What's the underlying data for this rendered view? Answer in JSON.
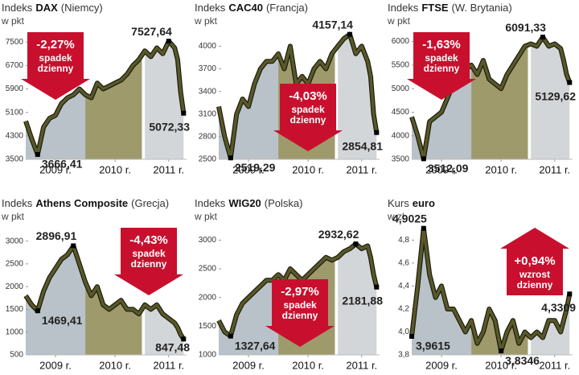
{
  "chart_data": [
    {
      "type": "line",
      "title": {
        "prefix": "Indeks",
        "name": "DAX",
        "suffix": "(Niemcy)"
      },
      "unit": "w pkt",
      "x": [
        2009.0,
        2009.1,
        2009.2,
        2009.3,
        2009.4,
        2009.5,
        2009.6,
        2009.7,
        2009.8,
        2009.9,
        2010.0,
        2010.1,
        2010.2,
        2010.3,
        2010.4,
        2010.5,
        2010.6,
        2010.7,
        2010.8,
        2010.9,
        2011.0,
        2011.1,
        2011.2,
        2011.3,
        2011.4,
        2011.5,
        2011.55,
        2011.6,
        2011.65
      ],
      "xlim": [
        2009,
        2011.7
      ],
      "xticks": [
        {
          "value": 2009.5,
          "label": "2009 r."
        },
        {
          "value": 2010.5,
          "label": "2010 r."
        },
        {
          "value": 2011.4,
          "label": "2011 r."
        }
      ],
      "ylim": [
        3500,
        8000
      ],
      "yticks": [
        3500,
        4300,
        5100,
        5900,
        6700,
        7500
      ],
      "band_colors": [
        "#b8c2c8",
        "#9e9a6c",
        "#d3d6d8"
      ],
      "series": [
        {
          "color": "#58582a",
          "values": [
            4800,
            4200,
            3666.41,
            4600,
            4900,
            5000,
            5400,
            5600,
            5700,
            5900,
            5700,
            5600,
            6100,
            5900,
            6000,
            6100,
            6200,
            6400,
            6700,
            6900,
            7200,
            7000,
            7300,
            7100,
            7527.64,
            7300,
            6900,
            5800,
            5072.33
          ],
          "value_labels": [
            null,
            null,
            "3666,41",
            null,
            null,
            null,
            null,
            null,
            null,
            null,
            null,
            null,
            null,
            null,
            null,
            null,
            null,
            null,
            null,
            null,
            null,
            null,
            null,
            null,
            "7527,64",
            null,
            null,
            null,
            "5072,33"
          ]
        }
      ],
      "badge": {
        "change": "-2,27%",
        "lines": [
          "spadek",
          "dzienny"
        ],
        "direction": "down",
        "color": "#c8102e",
        "position": "top-left"
      }
    },
    {
      "type": "line",
      "title": {
        "prefix": "Indeks",
        "name": "CAC40",
        "suffix": "(Francja)"
      },
      "unit": "w pkt",
      "x": [
        2009.0,
        2009.1,
        2009.2,
        2009.3,
        2009.4,
        2009.5,
        2009.6,
        2009.7,
        2009.8,
        2009.9,
        2010.0,
        2010.1,
        2010.2,
        2010.3,
        2010.4,
        2010.5,
        2010.6,
        2010.7,
        2010.8,
        2010.9,
        2011.0,
        2011.1,
        2011.2,
        2011.3,
        2011.4,
        2011.5,
        2011.55,
        2011.6,
        2011.65
      ],
      "xlim": [
        2009,
        2011.7
      ],
      "xticks": [
        {
          "value": 2009.5,
          "label": "2009 r."
        },
        {
          "value": 2010.5,
          "label": "2010 r."
        },
        {
          "value": 2011.4,
          "label": "2011 r."
        }
      ],
      "ylim": [
        2500,
        4250
      ],
      "yticks": [
        2500,
        2800,
        3100,
        3400,
        3700,
        4000
      ],
      "band_colors": [
        "#b8c2c8",
        "#9e9a6c",
        "#d3d6d8"
      ],
      "series": [
        {
          "color": "#58582a",
          "values": [
            3200,
            2800,
            2519.29,
            3100,
            3300,
            3200,
            3500,
            3700,
            3800,
            3800,
            3900,
            3700,
            4000,
            3500,
            3600,
            3500,
            3700,
            3800,
            3700,
            3900,
            4000,
            4100,
            4157.14,
            3900,
            4000,
            3800,
            3600,
            3100,
            2854.81
          ],
          "value_labels": [
            null,
            null,
            "2519,29",
            null,
            null,
            null,
            null,
            null,
            null,
            null,
            null,
            null,
            null,
            null,
            null,
            null,
            null,
            null,
            null,
            null,
            null,
            null,
            "4157,14",
            null,
            null,
            null,
            null,
            null,
            "2854,81"
          ]
        }
      ],
      "badge": {
        "change": "-4,03%",
        "lines": [
          "spadek",
          "dzienny"
        ],
        "direction": "down",
        "color": "#c8102e",
        "position": "bottom-center"
      }
    },
    {
      "type": "line",
      "title": {
        "prefix": "Indeks",
        "name": "FTSE",
        "suffix": "(W. Brytania)"
      },
      "unit": "w pkt",
      "x": [
        2009.0,
        2009.1,
        2009.2,
        2009.3,
        2009.4,
        2009.5,
        2009.6,
        2009.7,
        2009.8,
        2009.9,
        2010.0,
        2010.1,
        2010.2,
        2010.3,
        2010.4,
        2010.5,
        2010.6,
        2010.7,
        2010.8,
        2010.9,
        2011.0,
        2011.1,
        2011.2,
        2011.3,
        2011.4,
        2011.5,
        2011.55,
        2011.6,
        2011.65
      ],
      "xlim": [
        2009,
        2011.7
      ],
      "xticks": [
        {
          "value": 2009.5,
          "label": "2009 r."
        },
        {
          "value": 2010.5,
          "label": "2010 r."
        },
        {
          "value": 2011.4,
          "label": "2011 r."
        }
      ],
      "ylim": [
        3500,
        6300
      ],
      "yticks": [
        3500,
        4000,
        4500,
        5000,
        5500,
        6000
      ],
      "band_colors": [
        "#b8c2c8",
        "#9e9a6c",
        "#d3d6d8"
      ],
      "series": [
        {
          "color": "#58582a",
          "values": [
            4400,
            4000,
            3512.09,
            4300,
            4400,
            4500,
            4800,
            5100,
            5200,
            5400,
            5500,
            5300,
            5600,
            5200,
            5100,
            5000,
            5300,
            5500,
            5700,
            5900,
            5950,
            5900,
            6091.33,
            5900,
            5950,
            5850,
            5600,
            5300,
            5129.62
          ],
          "value_labels": [
            null,
            null,
            "3512,09",
            null,
            null,
            null,
            null,
            null,
            null,
            null,
            null,
            null,
            null,
            null,
            null,
            null,
            null,
            null,
            null,
            null,
            null,
            null,
            "6091,33",
            null,
            null,
            null,
            null,
            null,
            "5129,62"
          ]
        }
      ],
      "badge": {
        "change": "-1,63%",
        "lines": [
          "spadek",
          "dzienny"
        ],
        "direction": "down",
        "color": "#c8102e",
        "position": "top-left"
      }
    },
    {
      "type": "line",
      "title": {
        "prefix": "Indeks",
        "name": "Athens Composite",
        "suffix": "(Grecja)"
      },
      "unit": "w pkt",
      "x": [
        2009.0,
        2009.1,
        2009.2,
        2009.3,
        2009.4,
        2009.5,
        2009.6,
        2009.7,
        2009.8,
        2009.9,
        2010.0,
        2010.1,
        2010.2,
        2010.3,
        2010.4,
        2010.5,
        2010.6,
        2010.7,
        2010.8,
        2010.9,
        2011.0,
        2011.1,
        2011.2,
        2011.3,
        2011.4,
        2011.5,
        2011.55,
        2011.6,
        2011.65
      ],
      "xlim": [
        2009,
        2011.7
      ],
      "xticks": [
        {
          "value": 2009.5,
          "label": "2009 r."
        },
        {
          "value": 2010.5,
          "label": "2010 r."
        },
        {
          "value": 2011.4,
          "label": "2011 r."
        }
      ],
      "ylim": [
        500,
        3400
      ],
      "yticks": [
        500,
        1000,
        1500,
        2000,
        2500,
        3000
      ],
      "band_colors": [
        "#b8c2c8",
        "#9e9a6c",
        "#d3d6d8"
      ],
      "series": [
        {
          "color": "#58582a",
          "values": [
            1800,
            1600,
            1469.41,
            1900,
            2200,
            2400,
            2600,
            2700,
            2896.91,
            2500,
            2100,
            1800,
            2000,
            1600,
            1500,
            1600,
            1700,
            1500,
            1500,
            1400,
            1600,
            1500,
            1600,
            1400,
            1300,
            1200,
            1100,
            950,
            847.48
          ],
          "value_labels": [
            null,
            null,
            "1469,41",
            null,
            null,
            null,
            null,
            null,
            "2896,91",
            null,
            null,
            null,
            null,
            null,
            null,
            null,
            null,
            null,
            null,
            null,
            null,
            null,
            null,
            null,
            null,
            null,
            null,
            null,
            "847,48"
          ]
        }
      ],
      "badge": {
        "change": "-4,43%",
        "lines": [
          "spadek",
          "dzienny"
        ],
        "direction": "down",
        "color": "#c8102e",
        "position": "top-right"
      }
    },
    {
      "type": "line",
      "title": {
        "prefix": "Indeks",
        "name": "WIG20",
        "suffix": "(Polska)"
      },
      "unit": "w pkt",
      "x": [
        2009.0,
        2009.1,
        2009.2,
        2009.3,
        2009.4,
        2009.5,
        2009.6,
        2009.7,
        2009.8,
        2009.9,
        2010.0,
        2010.1,
        2010.2,
        2010.3,
        2010.4,
        2010.5,
        2010.6,
        2010.7,
        2010.8,
        2010.9,
        2011.0,
        2011.1,
        2011.2,
        2011.3,
        2011.4,
        2011.5,
        2011.55,
        2011.6,
        2011.65
      ],
      "xlim": [
        2009,
        2011.7
      ],
      "xticks": [
        {
          "value": 2009.5,
          "label": "2009 r."
        },
        {
          "value": 2010.5,
          "label": "2010 r."
        },
        {
          "value": 2011.4,
          "label": "2011 r."
        }
      ],
      "ylim": [
        1000,
        3300
      ],
      "yticks": [
        1000,
        1500,
        2000,
        2500,
        3000
      ],
      "band_colors": [
        "#b8c2c8",
        "#9e9a6c",
        "#d3d6d8"
      ],
      "series": [
        {
          "color": "#58582a",
          "values": [
            1600,
            1400,
            1327.64,
            1700,
            1900,
            2000,
            2100,
            2200,
            2300,
            2300,
            2400,
            2300,
            2500,
            2400,
            2300,
            2400,
            2500,
            2600,
            2700,
            2650,
            2700,
            2800,
            2850,
            2932.62,
            2850,
            2900,
            2700,
            2400,
            2181.88
          ],
          "value_labels": [
            null,
            null,
            "1327,64",
            null,
            null,
            null,
            null,
            null,
            null,
            null,
            null,
            null,
            null,
            null,
            null,
            null,
            null,
            null,
            null,
            null,
            null,
            null,
            null,
            "2932,62",
            null,
            null,
            null,
            null,
            "2181,88"
          ]
        }
      ],
      "badge": {
        "change": "-2,97%",
        "lines": [
          "spadek",
          "dzienny"
        ],
        "direction": "down",
        "color": "#c8102e",
        "position": "bottom-center"
      }
    },
    {
      "type": "line",
      "title": {
        "prefix": "Kurs",
        "name": "euro",
        "suffix": null
      },
      "unit": "w zł",
      "x": [
        2009.0,
        2009.1,
        2009.2,
        2009.3,
        2009.4,
        2009.5,
        2009.6,
        2009.7,
        2009.8,
        2009.9,
        2010.0,
        2010.1,
        2010.2,
        2010.3,
        2010.4,
        2010.5,
        2010.6,
        2010.7,
        2010.8,
        2010.9,
        2011.0,
        2011.1,
        2011.2,
        2011.3,
        2011.4,
        2011.5,
        2011.55,
        2011.6,
        2011.65
      ],
      "xlim": [
        2009,
        2011.7
      ],
      "xticks": [
        {
          "value": 2009.5,
          "label": "2009 r."
        },
        {
          "value": 2010.5,
          "label": "2010 r."
        },
        {
          "value": 2011.4,
          "label": "2011 r."
        }
      ],
      "ylim": [
        3.8,
        4.95
      ],
      "yticks": [
        {
          "value": 3.8,
          "label": "3,8"
        },
        {
          "value": 4.0,
          "label": "4,0"
        },
        {
          "value": 4.2,
          "label": "4,2"
        },
        {
          "value": 4.4,
          "label": "4,4"
        },
        {
          "value": 4.6,
          "label": "4,6"
        },
        {
          "value": 4.8,
          "label": "4,8"
        }
      ],
      "band_colors": [
        "#b8c2c8",
        "#9e9a6c",
        "#d3d6d8"
      ],
      "series": [
        {
          "color": "#58582a",
          "values": [
            3.9615,
            4.4,
            4.9025,
            4.5,
            4.3,
            4.4,
            4.2,
            4.2,
            4.1,
            4.0,
            4.1,
            3.9,
            4.0,
            4.2,
            4.1,
            3.8346,
            4.0,
            4.1,
            3.9,
            4.0,
            3.95,
            4.0,
            3.95,
            4.1,
            4.1,
            4.0,
            4.1,
            4.2,
            4.3309
          ],
          "value_labels": [
            "3,9615",
            null,
            "4,9025",
            null,
            null,
            null,
            null,
            null,
            null,
            null,
            null,
            null,
            null,
            null,
            null,
            "3,8346",
            null,
            null,
            null,
            null,
            null,
            null,
            null,
            null,
            null,
            null,
            null,
            null,
            "4,3309"
          ]
        }
      ],
      "badge": {
        "change": "+0,94%",
        "lines": [
          "wzrost",
          "dzienny"
        ],
        "direction": "up",
        "color": "#c8102e",
        "position": "top-right"
      }
    }
  ]
}
